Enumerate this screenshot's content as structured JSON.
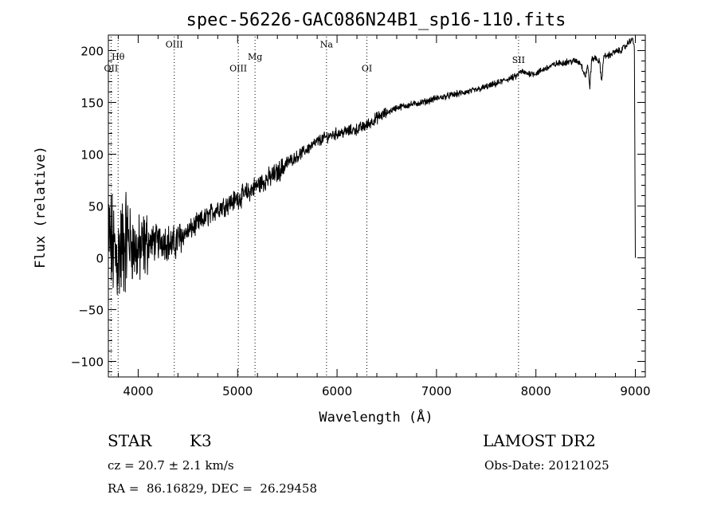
{
  "chart_data": {
    "type": "line",
    "title": "spec-56226-GAC086N24B1_sp16-110.fits",
    "xlabel": "Wavelength (Å)",
    "ylabel": "Flux (relative)",
    "xlim": [
      3700,
      9100
    ],
    "ylim": [
      -115,
      215
    ],
    "xticks": [
      4000,
      5000,
      6000,
      7000,
      8000,
      9000
    ],
    "yticks": [
      -100,
      -50,
      0,
      50,
      100,
      150,
      200
    ],
    "xtick_labels": [
      "4000",
      "5000",
      "6000",
      "7000",
      "8000",
      "9000"
    ],
    "ytick_labels": [
      "−100",
      "−50",
      "0",
      "50",
      "100",
      "150",
      "200"
    ],
    "grid": false,
    "line_color": "#000000",
    "lines": [
      {
        "label": "OII",
        "x": 3727,
        "label_y": 180
      },
      {
        "label": "Hθ",
        "x": 3798,
        "label_y": 191
      },
      {
        "label": "OIII",
        "x": 4363,
        "label_y": 203
      },
      {
        "label": "OIII",
        "x": 5007,
        "label_y": 180
      },
      {
        "label": "Mg",
        "x": 5175,
        "label_y": 191
      },
      {
        "label": "Na",
        "x": 5894,
        "label_y": 203
      },
      {
        "label": "OI",
        "x": 6300,
        "label_y": 180
      },
      {
        "label": "SII",
        "x": 7825,
        "label_y": 188
      }
    ],
    "series": [
      {
        "x": [
          3700,
          3740,
          3780,
          3820,
          3860,
          3900,
          3950,
          4000,
          4050,
          4100,
          4150,
          4200,
          4250,
          4300,
          4350,
          4400,
          4450,
          4500,
          4600,
          4700,
          4800,
          4900,
          5000,
          5100,
          5200,
          5300,
          5400,
          5500,
          5600,
          5700,
          5800,
          5900,
          6000,
          6100,
          6200,
          6300,
          6400,
          6500,
          6600,
          6700,
          6800,
          6900,
          7000,
          7100,
          7200,
          7300,
          7400,
          7500,
          7600,
          7700,
          7800,
          7850,
          7900,
          8000,
          8100,
          8200,
          8300,
          8400,
          8450,
          8498,
          8520,
          8542,
          8560,
          8600,
          8640,
          8662,
          8680,
          8750,
          8800,
          8850,
          8900,
          8950,
          8970,
          8990,
          9000
        ],
        "y": [
          20,
          10,
          0,
          5,
          15,
          20,
          10,
          5,
          10,
          15,
          15,
          15,
          18,
          15,
          12,
          18,
          22,
          25,
          33,
          40,
          48,
          52,
          57,
          63,
          70,
          76,
          82,
          92,
          98,
          105,
          112,
          117,
          120,
          122,
          124,
          128,
          135,
          140,
          145,
          147,
          149,
          151,
          154,
          156,
          158,
          160,
          162,
          165,
          168,
          172,
          175,
          180,
          178,
          178,
          183,
          187,
          189,
          190,
          188,
          175,
          186,
          165,
          191,
          193,
          189,
          170,
          194,
          196,
          199,
          200,
          204,
          210,
          212,
          205,
          0
        ]
      }
    ]
  },
  "info": {
    "object_type": "STAR",
    "object_class": "K3",
    "survey": "LAMOST DR2",
    "cz": "cz = 20.7 ± 2.1 km/s",
    "obs_date": "Obs-Date: 20121025",
    "radec": "RA =  86.16829, DEC =  26.29458"
  }
}
